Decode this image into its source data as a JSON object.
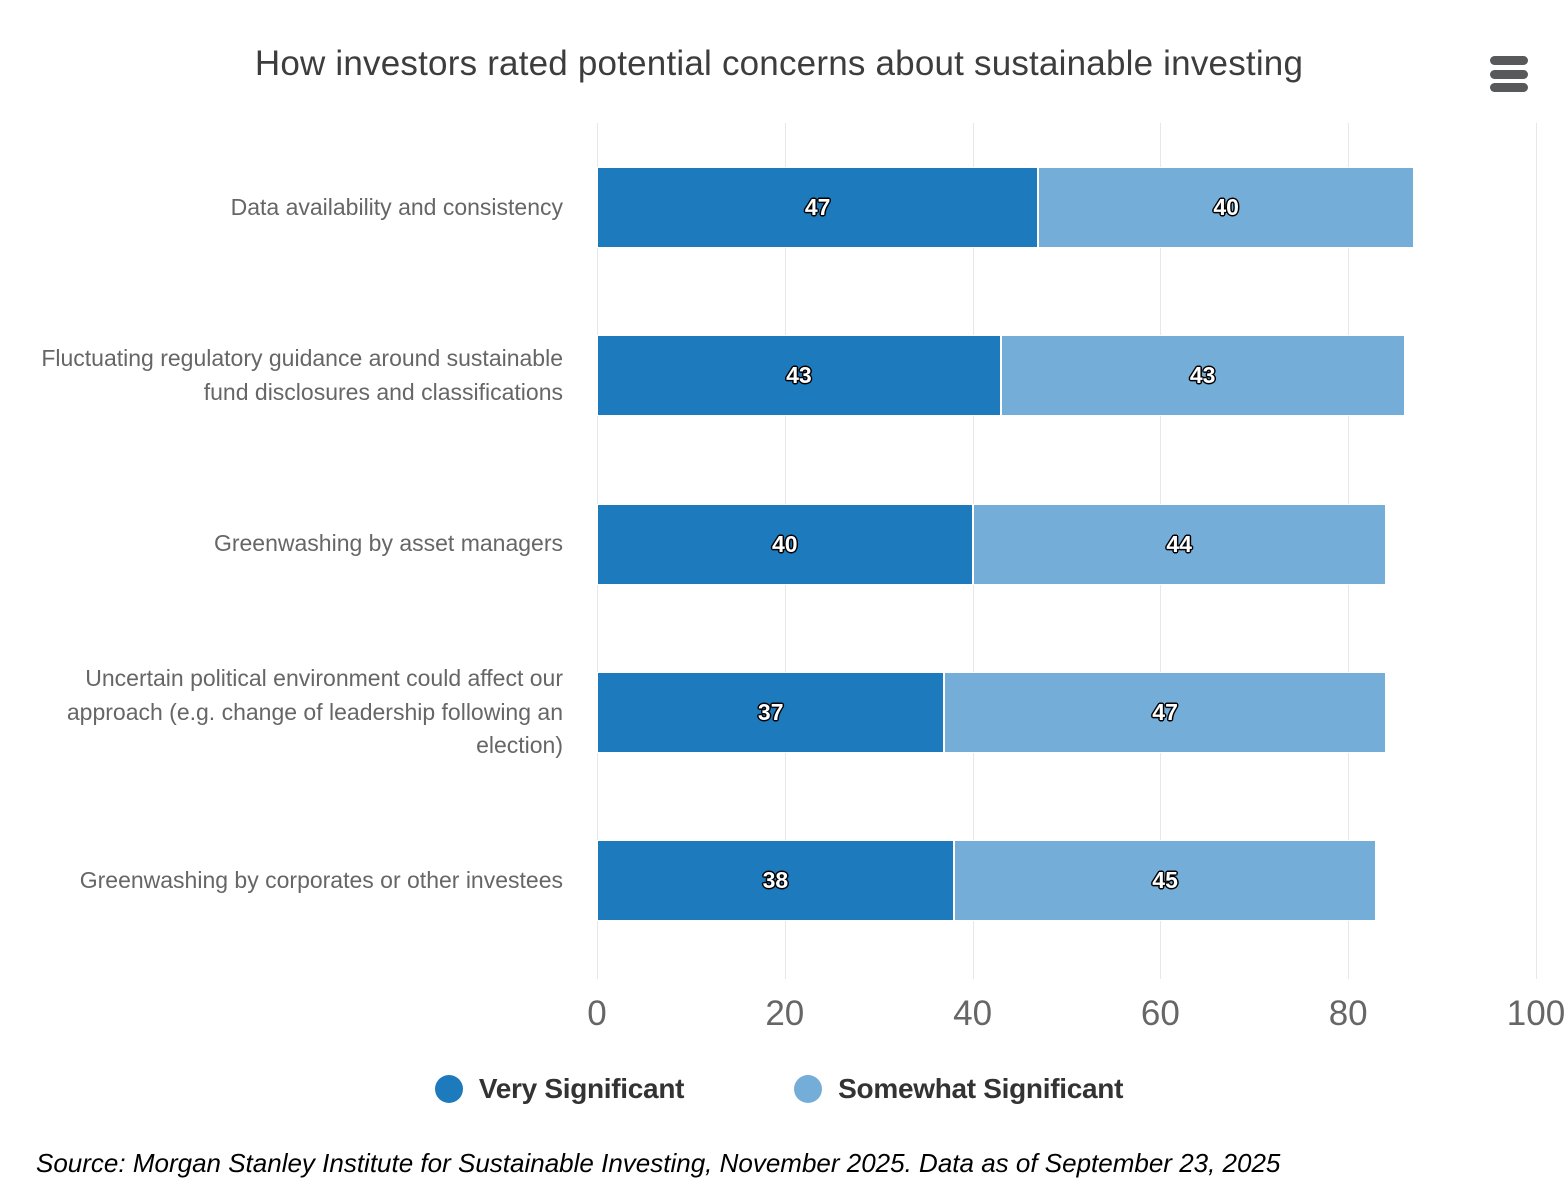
{
  "title": "How investors rated potential concerns about sustainable investing",
  "export_menu": {
    "icon": "hamburger-menu-icon"
  },
  "source": "Source: Morgan Stanley Institute for Sustainable Investing, November 2025. Data as of September 23, 2025",
  "chart_data": {
    "type": "bar",
    "orientation": "horizontal",
    "stacked": true,
    "title": "How investors rated potential concerns about sustainable investing",
    "categories": [
      "Data availability and consistency",
      "Fluctuating regulatory guidance around sustainable fund disclosures and classifications",
      "Greenwashing by asset managers",
      "Uncertain political environment could affect our approach (e.g. change of leadership following an election)",
      "Greenwashing by corporates or other investees"
    ],
    "series": [
      {
        "name": "Very Significant",
        "color": "#1d7abc",
        "values": [
          47,
          43,
          40,
          37,
          38
        ]
      },
      {
        "name": "Somewhat Significant",
        "color": "#74aed8",
        "values": [
          40,
          43,
          44,
          47,
          45
        ]
      }
    ],
    "xlabel": "",
    "ylabel": "",
    "xlim": [
      0,
      100
    ],
    "axis_ticks": [
      0,
      20,
      40,
      60,
      80,
      100
    ],
    "grid": true,
    "grid_color": "#e7e7e7",
    "data_labels": true,
    "legend_position": "bottom"
  }
}
